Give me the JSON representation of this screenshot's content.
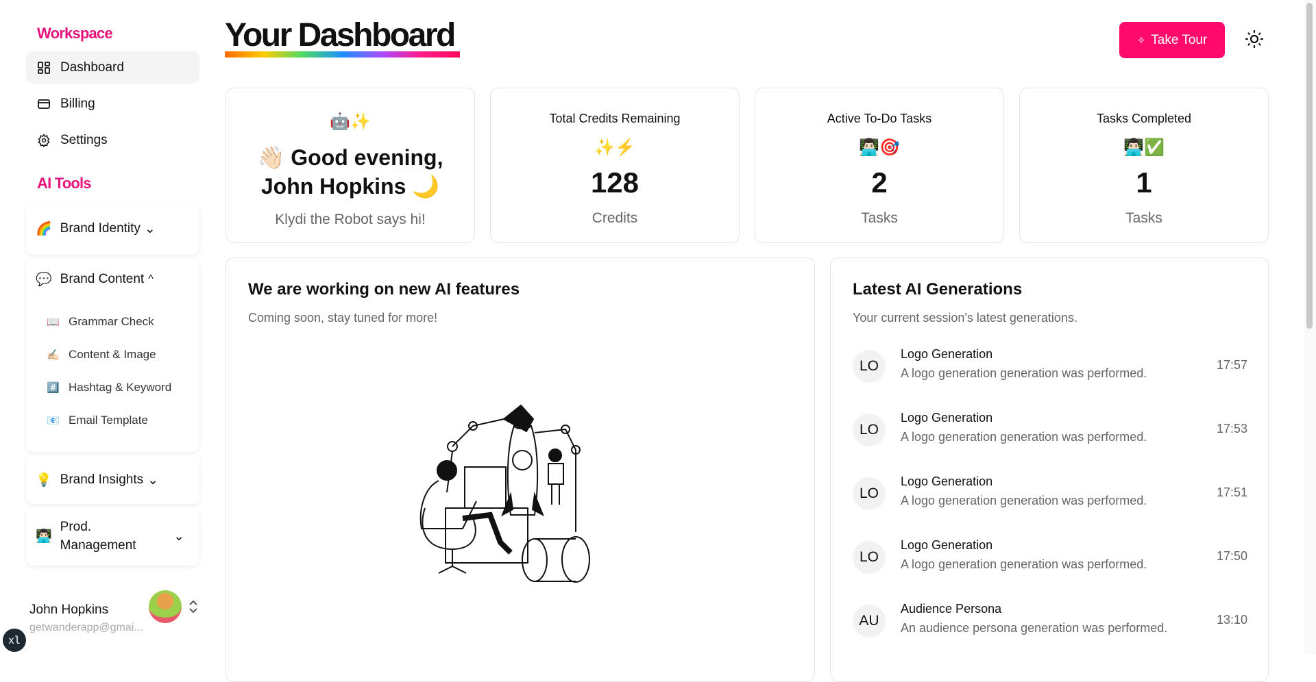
{
  "sidebar": {
    "workspace_label": "Workspace",
    "items": [
      {
        "label": "Dashboard",
        "icon": "dashboard-icon"
      },
      {
        "label": "Billing",
        "icon": "credit-card-icon"
      },
      {
        "label": "Settings",
        "icon": "gear-icon"
      }
    ],
    "ai_tools_label": "AI Tools",
    "groups": [
      {
        "emoji": "🌈",
        "label": "Brand Identity",
        "expanded": false
      },
      {
        "emoji": "💬",
        "label": "Brand Content",
        "expanded": true,
        "items": [
          {
            "emoji": "📖",
            "label": "Grammar Check"
          },
          {
            "emoji": "✍🏻",
            "label": "Content & Image"
          },
          {
            "emoji": "#️⃣",
            "label": "Hashtag & Keyword"
          },
          {
            "emoji": "📧",
            "label": "Email Template"
          }
        ]
      },
      {
        "emoji": "💡",
        "label": "Brand Insights",
        "expanded": false
      },
      {
        "emoji": "👨🏻‍💻",
        "label": "Prod. Management",
        "expanded": false
      }
    ],
    "user": {
      "name": "John Hopkins",
      "email": "getwanderapp@gmai..."
    },
    "badge": "xl"
  },
  "header": {
    "title": "Your Dashboard",
    "tour_button": "Take Tour",
    "accent": "#ff0a6c"
  },
  "cards": {
    "greeting": {
      "emoji": "🤖✨",
      "line1": "👋🏻 Good evening,",
      "line2": "John Hopkins 🌙",
      "subtitle": "Klydi the Robot says hi!"
    },
    "stats": [
      {
        "title": "Total Credits Remaining",
        "emoji": "✨⚡",
        "value": "128",
        "unit": "Credits"
      },
      {
        "title": "Active To-Do Tasks",
        "emoji": "👨🏻‍💻🎯",
        "value": "2",
        "unit": "Tasks"
      },
      {
        "title": "Tasks Completed",
        "emoji": "👨🏻‍💻✅",
        "value": "1",
        "unit": "Tasks"
      }
    ]
  },
  "features": {
    "title": "We are working on new AI features",
    "subtitle": "Coming soon, stay tuned for more!"
  },
  "generations": {
    "title": "Latest AI Generations",
    "subtitle": "Your current session's latest generations.",
    "items": [
      {
        "initials": "LO",
        "title": "Logo Generation",
        "desc": "A logo generation generation was performed.",
        "time": "17:57"
      },
      {
        "initials": "LO",
        "title": "Logo Generation",
        "desc": "A logo generation generation was performed.",
        "time": "17:53"
      },
      {
        "initials": "LO",
        "title": "Logo Generation",
        "desc": "A logo generation generation was performed.",
        "time": "17:51"
      },
      {
        "initials": "LO",
        "title": "Logo Generation",
        "desc": "A logo generation generation was performed.",
        "time": "17:50"
      },
      {
        "initials": "AU",
        "title": "Audience Persona",
        "desc": "An audience persona generation was performed.",
        "time": "13:10"
      }
    ]
  }
}
